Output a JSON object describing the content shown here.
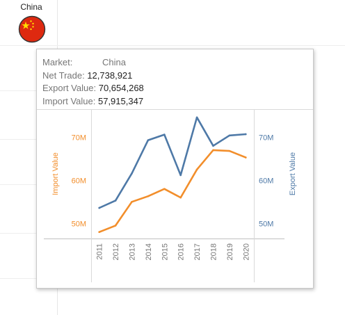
{
  "market_header": "China",
  "flag_icon": "china-flag-icon",
  "tooltip": {
    "market_label": "Market:",
    "market_value": "China",
    "net_trade_label": "Net Trade:",
    "net_trade_value": "12,738,921",
    "export_label": "Export Value:",
    "export_value": "70,654,268",
    "import_label": "Import Value:",
    "import_value": "57,915,347"
  },
  "colors": {
    "import": "#f28e2b",
    "export": "#4e79a7",
    "axis_text": "#767676"
  },
  "chart_data": {
    "type": "line",
    "x": [
      "2011",
      "2012",
      "2013",
      "2014",
      "2015",
      "2016",
      "2017",
      "2018",
      "2019",
      "2020"
    ],
    "series": [
      {
        "name": "Import Value",
        "axis": "left",
        "values": [
          48.0,
          49.5,
          55.0,
          56.3,
          58.0,
          56.0,
          62.5,
          67.0,
          66.8,
          65.3
        ]
      },
      {
        "name": "Export Value",
        "axis": "right",
        "values": [
          53.6,
          55.3,
          61.6,
          69.3,
          70.6,
          61.2,
          74.6,
          68.0,
          70.4,
          70.7
        ]
      }
    ],
    "left_axis": {
      "label": "Import Value",
      "ticks": [
        "50M",
        "60M",
        "70M"
      ],
      "tick_values": [
        50,
        60,
        70
      ],
      "range": [
        46.5,
        76.5
      ]
    },
    "right_axis": {
      "label": "Export Value",
      "ticks": [
        "50M",
        "60M",
        "70M"
      ],
      "tick_values": [
        50,
        60,
        70
      ],
      "range": [
        46.5,
        76.5
      ]
    },
    "grid": false
  }
}
